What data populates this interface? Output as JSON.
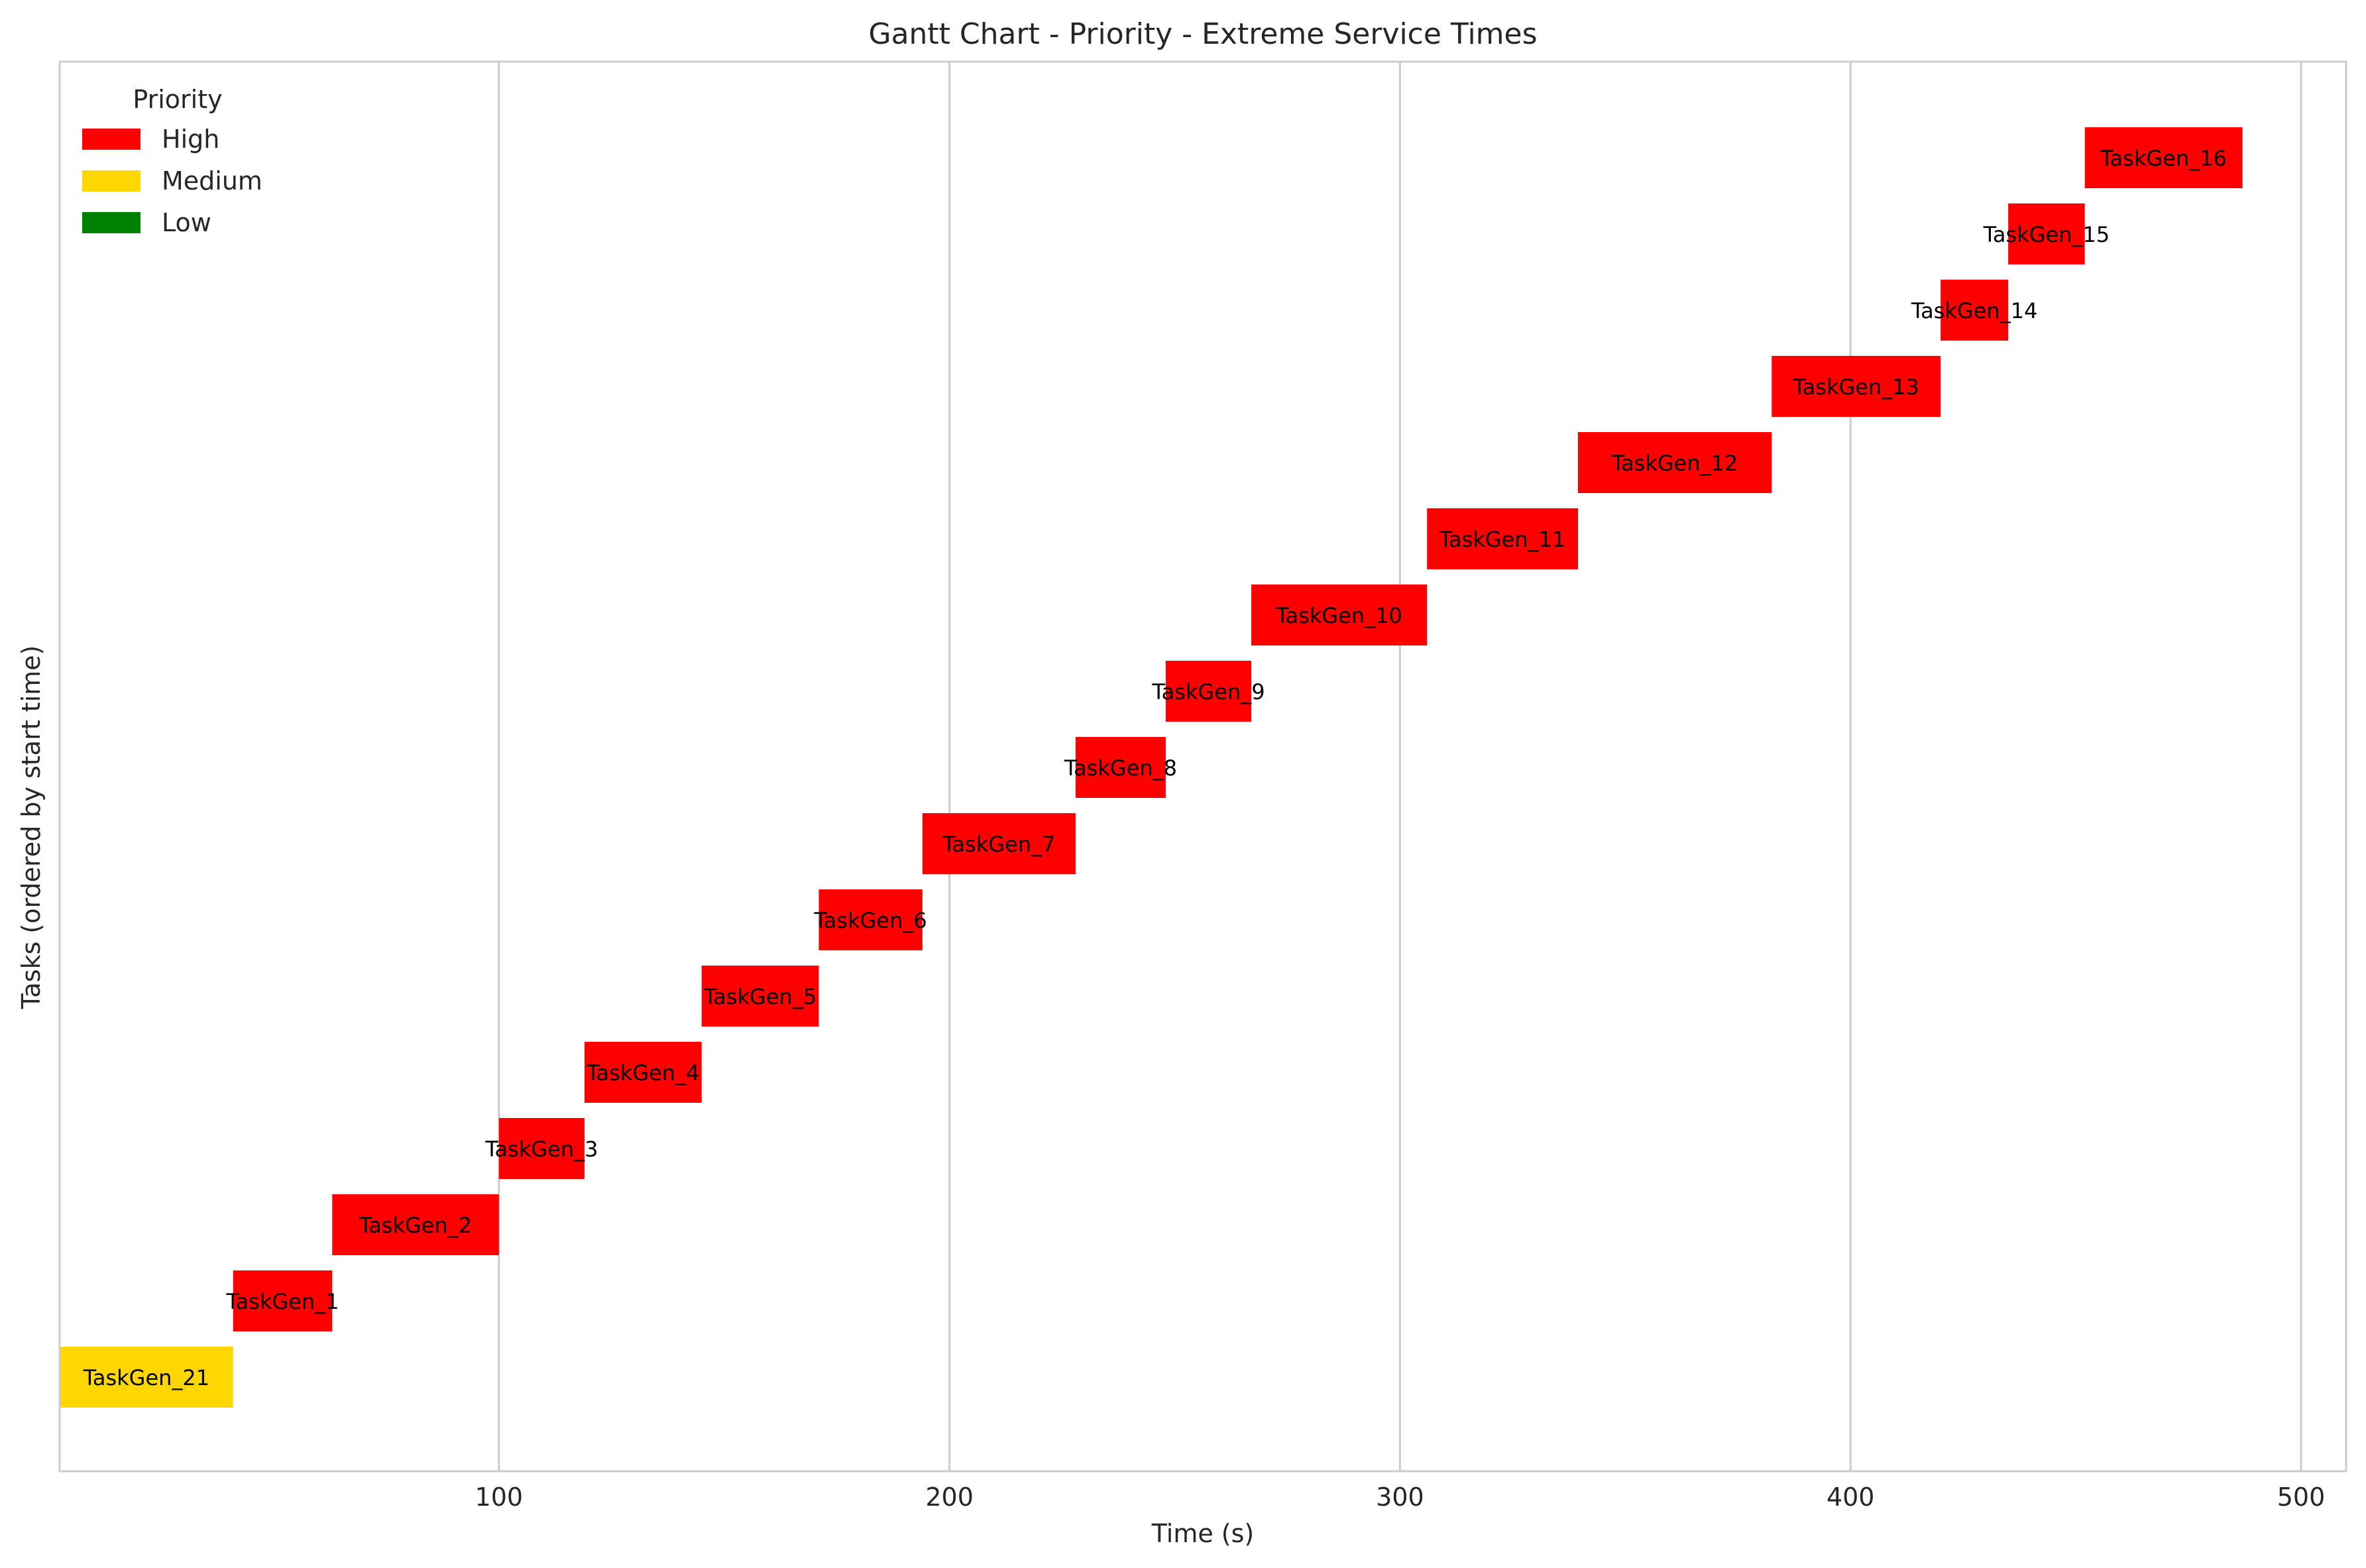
{
  "chart_data": {
    "type": "gantt",
    "title": "Gantt Chart - Priority - Extreme Service Times",
    "xlabel": "Time (s)",
    "ylabel": "Tasks (ordered by start time)",
    "xlim": [
      2.5,
      510
    ],
    "xticks": [
      100,
      200,
      300,
      400,
      500
    ],
    "grid": "vertical",
    "legend": {
      "title": "Priority",
      "placement": "top-left",
      "entries": [
        {
          "label": "High",
          "color": "#ff0000"
        },
        {
          "label": "Medium",
          "color": "#ffd700"
        },
        {
          "label": "Low",
          "color": "#008000"
        }
      ]
    },
    "tasks": [
      {
        "name": "TaskGen_21",
        "start": 2.5,
        "end": 41,
        "priority": "Medium"
      },
      {
        "name": "TaskGen_1",
        "start": 41,
        "end": 63,
        "priority": "High"
      },
      {
        "name": "TaskGen_2",
        "start": 63,
        "end": 100,
        "priority": "High"
      },
      {
        "name": "TaskGen_3",
        "start": 100,
        "end": 119,
        "priority": "High"
      },
      {
        "name": "TaskGen_4",
        "start": 119,
        "end": 145,
        "priority": "High"
      },
      {
        "name": "TaskGen_5",
        "start": 145,
        "end": 171,
        "priority": "High"
      },
      {
        "name": "TaskGen_6",
        "start": 171,
        "end": 194,
        "priority": "High"
      },
      {
        "name": "TaskGen_7",
        "start": 194,
        "end": 228,
        "priority": "High"
      },
      {
        "name": "TaskGen_8",
        "start": 228,
        "end": 248,
        "priority": "High"
      },
      {
        "name": "TaskGen_9",
        "start": 248,
        "end": 267,
        "priority": "High"
      },
      {
        "name": "TaskGen_10",
        "start": 267,
        "end": 306,
        "priority": "High"
      },
      {
        "name": "TaskGen_11",
        "start": 306,
        "end": 339.5,
        "priority": "High"
      },
      {
        "name": "TaskGen_12",
        "start": 339.5,
        "end": 382.5,
        "priority": "High"
      },
      {
        "name": "TaskGen_13",
        "start": 382.5,
        "end": 420,
        "priority": "High"
      },
      {
        "name": "TaskGen_14",
        "start": 420,
        "end": 435,
        "priority": "High"
      },
      {
        "name": "TaskGen_15",
        "start": 435,
        "end": 452,
        "priority": "High"
      },
      {
        "name": "TaskGen_16",
        "start": 452,
        "end": 487,
        "priority": "High"
      }
    ]
  }
}
